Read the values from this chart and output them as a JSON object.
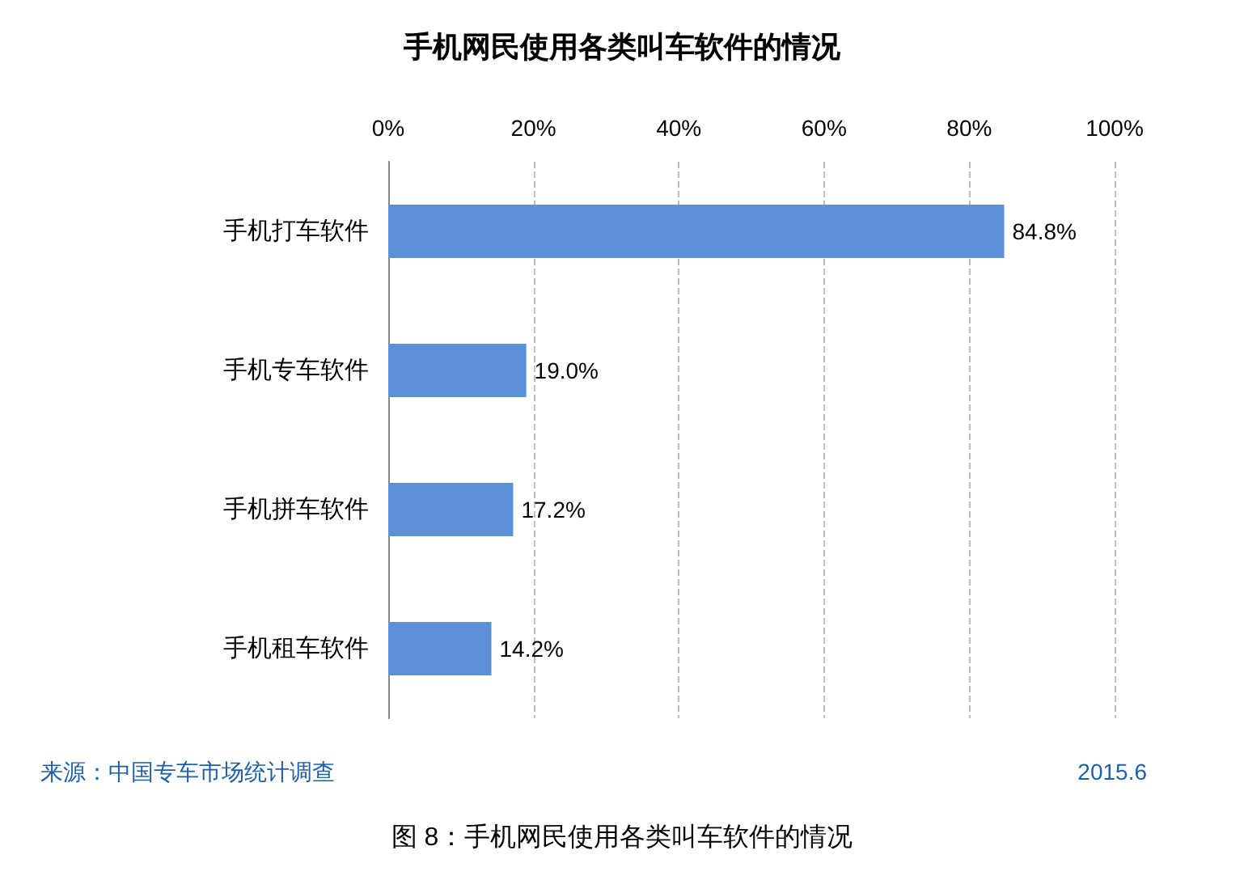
{
  "chart_data": {
    "type": "bar",
    "orientation": "horizontal",
    "title": "手机网民使用各类叫车软件的情况",
    "categories": [
      "手机打车软件",
      "手机专车软件",
      "手机拼车软件",
      "手机租车软件"
    ],
    "values": [
      84.8,
      19.0,
      17.2,
      14.2
    ],
    "value_labels": [
      "84.8%",
      "19.0%",
      "17.2%",
      "14.2%"
    ],
    "color": "#5b8fd6",
    "xlim": [
      0,
      100
    ],
    "xticks": [
      {
        "value": 0,
        "label": "0%"
      },
      {
        "value": 20,
        "label": "20%"
      },
      {
        "value": 40,
        "label": "40%"
      },
      {
        "value": 60,
        "label": "60%"
      },
      {
        "value": 80,
        "label": "80%"
      },
      {
        "value": 100,
        "label": "100%"
      }
    ],
    "grid": "x",
    "annotations": [
      "来源：中国专车市场统计调查",
      "2015.6",
      "图 8：手机网民使用各类叫车软件的情况"
    ]
  }
}
